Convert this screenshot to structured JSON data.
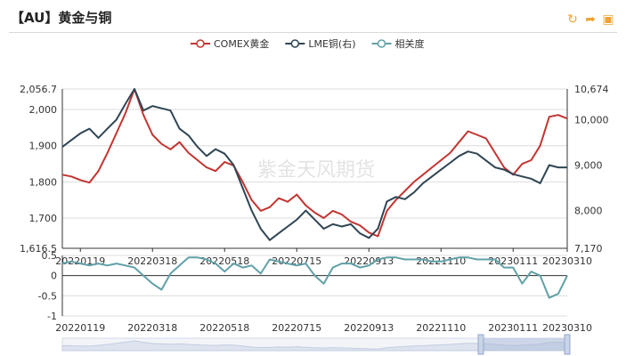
{
  "page": {
    "title": "【AU】黄金与铜",
    "watermark": "紫金天风期货",
    "tools": [
      {
        "name": "refresh-icon",
        "glyph": "↻"
      },
      {
        "name": "share-icon",
        "glyph": "➦"
      },
      {
        "name": "save-image-icon",
        "glyph": "▣"
      }
    ]
  },
  "chart_data": {
    "type": "line",
    "legend_position": "top-center",
    "x_ticks": [
      "20220119",
      "20220318",
      "20220518",
      "20220715",
      "20220913",
      "20221110",
      "20230111",
      "20230310"
    ],
    "series": [
      {
        "name": "COMEX黄金",
        "axis": "left",
        "color": "#c23531",
        "values": [
          1820,
          1815,
          1805,
          1798,
          1830,
          1880,
          1935,
          1990,
          2056.7,
          1985,
          1930,
          1905,
          1890,
          1910,
          1880,
          1860,
          1840,
          1830,
          1855,
          1845,
          1800,
          1750,
          1720,
          1730,
          1755,
          1745,
          1765,
          1735,
          1715,
          1700,
          1720,
          1710,
          1690,
          1680,
          1660,
          1650,
          1720,
          1750,
          1775,
          1800,
          1820,
          1840,
          1860,
          1880,
          1910,
          1940,
          1930,
          1920,
          1880,
          1840,
          1820,
          1850,
          1860,
          1900,
          1980,
          1985,
          1975
        ]
      },
      {
        "name": "LME铜(右)",
        "axis": "right",
        "color": "#2f4554",
        "values": [
          9400,
          9550,
          9700,
          9800,
          9600,
          9800,
          10000,
          10350,
          10674,
          10200,
          10300,
          10250,
          10200,
          9800,
          9650,
          9400,
          9200,
          9350,
          9250,
          9000,
          8500,
          8000,
          7600,
          7350,
          7500,
          7650,
          7800,
          8000,
          7800,
          7600,
          7700,
          7650,
          7700,
          7500,
          7400,
          7600,
          8200,
          8300,
          8250,
          8400,
          8600,
          8750,
          8900,
          9050,
          9200,
          9300,
          9250,
          9100,
          8950,
          8900,
          8800,
          8750,
          8700,
          8600,
          9000,
          8950,
          8950
        ]
      },
      {
        "name": "相关度",
        "axis": "corr",
        "color": "#61a0a8",
        "values": [
          0.3,
          0.35,
          0.3,
          0.25,
          0.3,
          0.25,
          0.3,
          0.25,
          0.2,
          0.0,
          -0.2,
          -0.35,
          0.05,
          0.25,
          0.45,
          0.45,
          0.4,
          0.3,
          0.1,
          0.3,
          0.2,
          0.25,
          0.05,
          0.4,
          0.35,
          0.3,
          0.25,
          0.3,
          0.0,
          -0.2,
          0.2,
          0.3,
          0.3,
          0.2,
          0.25,
          0.4,
          0.45,
          0.45,
          0.4,
          0.4,
          0.4,
          0.35,
          0.35,
          0.4,
          0.45,
          0.45,
          0.4,
          0.4,
          0.4,
          0.2,
          0.2,
          -0.2,
          0.1,
          0.0,
          -0.55,
          -0.45,
          0.0
        ]
      }
    ],
    "axes": {
      "left": {
        "ticks": [
          "1,616.5",
          "1,700",
          "1,800",
          "1,900",
          "2,000",
          "2,056.7"
        ],
        "min": 1616.5,
        "max": 2056.7
      },
      "right": {
        "ticks": [
          "7,170",
          "8,000",
          "9,000",
          "10,000",
          "10,674"
        ],
        "min": 7170,
        "max": 10674
      },
      "corr": {
        "ticks": [
          "0.5",
          "0",
          "-0.5",
          "-1"
        ],
        "min": -1,
        "max": 0.5
      }
    },
    "grid": true
  }
}
